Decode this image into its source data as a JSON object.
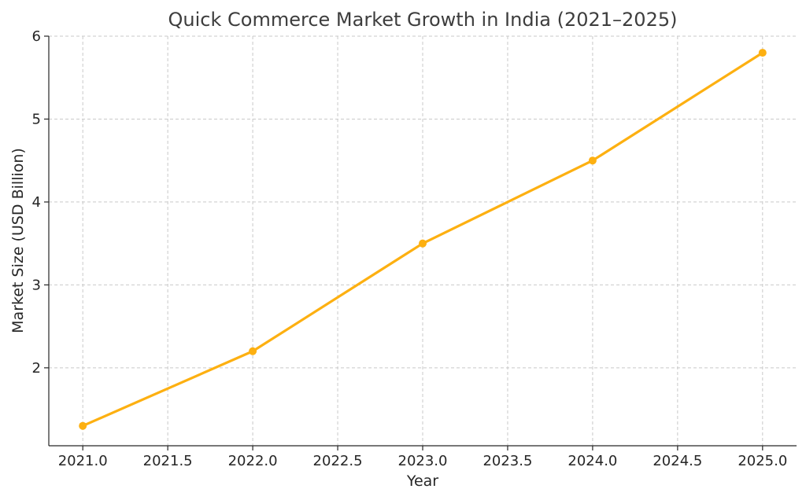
{
  "chart_data": {
    "type": "line",
    "title": "Quick Commerce Market Growth in India (2021–2025)",
    "xlabel": "Year",
    "ylabel": "Market Size (USD Billion)",
    "x": [
      2021,
      2022,
      2023,
      2024,
      2025
    ],
    "series": [
      {
        "values": [
          1.3,
          2.2,
          3.5,
          4.5,
          5.8
        ],
        "color": "#FDB011"
      }
    ],
    "xlim": [
      2020.8,
      2025.2
    ],
    "ylim": [
      1.06,
      6.0
    ],
    "xticks": [
      2021.0,
      2021.5,
      2022.0,
      2022.5,
      2023.0,
      2023.5,
      2024.0,
      2024.5,
      2025.0
    ],
    "xtick_labels": [
      "2021.0",
      "2021.5",
      "2022.0",
      "2022.5",
      "2023.0",
      "2023.5",
      "2024.0",
      "2024.5",
      "2025.0"
    ],
    "yticks": [
      2,
      3,
      4,
      5,
      6
    ],
    "ytick_labels": [
      "2",
      "3",
      "4",
      "5",
      "6"
    ],
    "grid": true,
    "markers": true
  }
}
